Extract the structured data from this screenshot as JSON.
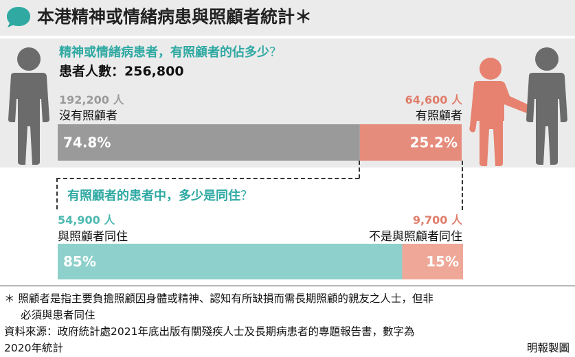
{
  "header": {
    "title": "本港精神或情緒病患與照顧者統計＊"
  },
  "panel1": {
    "question": "精神或情緒病患者，有照顧者的佔多少",
    "question_mark": "？",
    "total_label": "患者人數：256,800"
  },
  "panel2": {
    "question": "有照顧者的患者中，多少是同住",
    "question_mark": "？"
  },
  "chart_data": [
    {
      "type": "bar",
      "orientation": "horizontal-stacked",
      "title": "精神或情緒病患者，有照顧者的佔多少？",
      "total": 256800,
      "segments": [
        {
          "name": "沒有照顧者",
          "count_label": "192,200 人",
          "count": 192200,
          "percent": 74.8,
          "percent_label": "74.8%",
          "color": "#9a9a9a"
        },
        {
          "name": "有照顧者",
          "count_label": "64,600 人",
          "count": 64600,
          "percent": 25.2,
          "percent_label": "25.2%",
          "color": "#e68c7c"
        }
      ]
    },
    {
      "type": "bar",
      "orientation": "horizontal-stacked",
      "title": "有照顧者的患者中，多少是同住？",
      "segments": [
        {
          "name": "與照顧者同住",
          "count_label": "54,900 人",
          "count": 54900,
          "percent": 85,
          "percent_label": "85%",
          "color": "#8ed0cb"
        },
        {
          "name": "不是與照顧者同住",
          "count_label": "9,700 人",
          "count": 9700,
          "percent": 15,
          "percent_label": "15%",
          "color": "#efa898"
        }
      ]
    }
  ],
  "footnotes": {
    "note_line1": "＊ 照顧者是指主要負擔照顧因身體或精神、認知有所缺損而需長期照顧的親友之人士，但非",
    "note_line2": "必須與患者同住",
    "source_line1": "資料來源：政府統計處2021年底出版有關殘疾人士及長期病患者的專題報告書，數字為",
    "source_line2": "2020年統計",
    "credit": "明報製圖"
  },
  "colors": {
    "teal": "#2fa9a2",
    "grey": "#9a9a9a",
    "salmon": "#e07d6b",
    "panel_bg": "#ebebeb"
  },
  "icons": [
    "speech-bubble-icon",
    "person-icon",
    "caregiver-icon"
  ]
}
